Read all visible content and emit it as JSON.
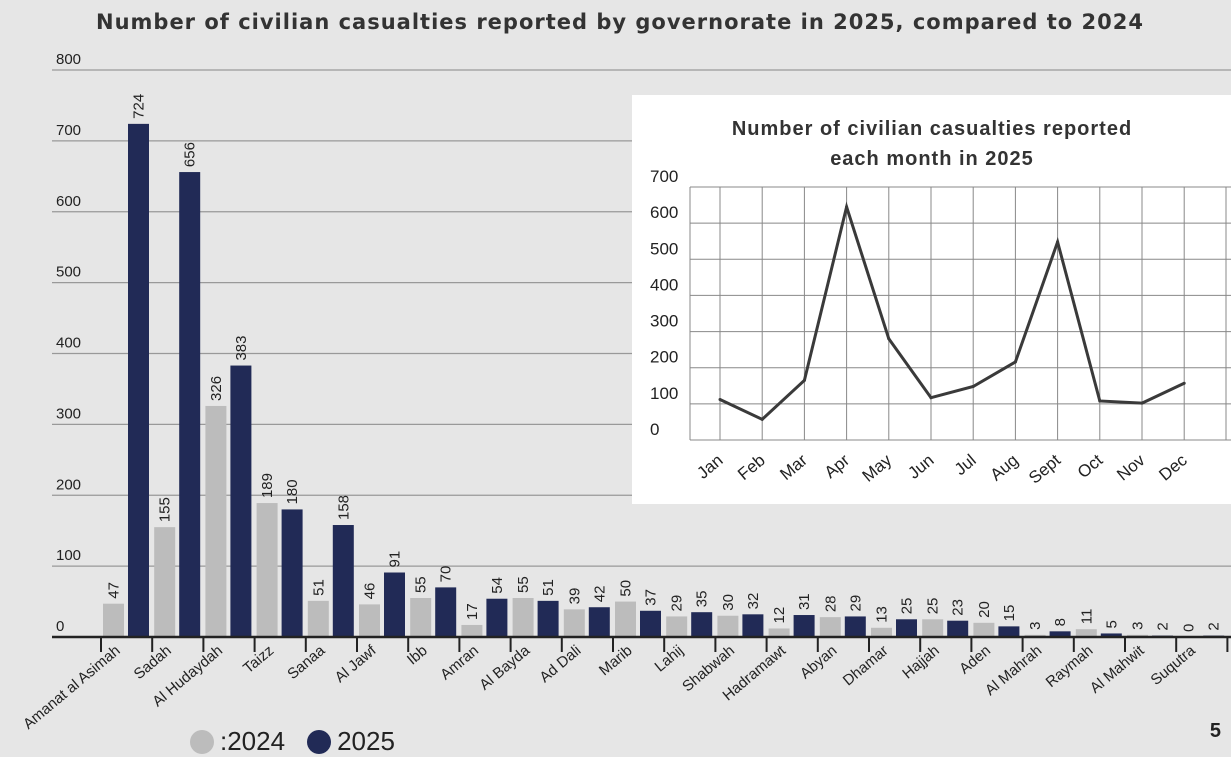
{
  "page": {
    "number": "5"
  },
  "colors": {
    "y2024": "#bcbcbc",
    "y2025": "#212a56",
    "line": "#3a3a3a",
    "grid": "#999999"
  },
  "chart_data": [
    {
      "type": "bar",
      "title": "Number of civilian casualties reported by governorate in 2025, compared to 2024",
      "xlabel": "",
      "ylabel": "",
      "ylim": [
        0,
        800
      ],
      "yticks": [
        0,
        100,
        200,
        300,
        400,
        500,
        600,
        700,
        800
      ],
      "grid": true,
      "legend": "bottom-left",
      "categories": [
        "Amanat al Asimah",
        "Sadah",
        "Al Hudaydah",
        "Taizz",
        "Sanaa",
        "Al Jawf",
        "Ibb",
        "Amran",
        "Al Bayda",
        "Ad Dali",
        "Marib",
        "Lahij",
        "Shabwah",
        "Hadramawt",
        "Abyan",
        "Dhamar",
        "Hajjah",
        "Aden",
        "Al Mahrah",
        "Raymah",
        "Al Mahwit",
        "Suqutra"
      ],
      "series": [
        {
          "name": ":2024",
          "values": [
            47,
            155,
            326,
            189,
            51,
            46,
            55,
            17,
            55,
            39,
            50,
            29,
            30,
            12,
            28,
            13,
            25,
            20,
            3,
            11,
            3,
            0
          ]
        },
        {
          "name": "2025",
          "values": [
            724,
            656,
            383,
            180,
            158,
            91,
            70,
            54,
            51,
            42,
            37,
            35,
            32,
            31,
            29,
            25,
            23,
            15,
            8,
            5,
            2,
            2
          ]
        }
      ]
    },
    {
      "type": "line",
      "title": "Number of civilian casualties reported each month in 2025",
      "title_lines": [
        "Number of civilian casualties reported",
        "each month in 2025"
      ],
      "xlabel": "",
      "ylabel": "",
      "ylim": [
        0,
        700
      ],
      "yticks": [
        0,
        100,
        200,
        300,
        400,
        500,
        600,
        700
      ],
      "grid": true,
      "categories": [
        "Jan",
        "Feb",
        "Mar",
        "Apr",
        "May",
        "Jun",
        "Jul",
        "Aug",
        "Sept",
        "Oct",
        "Nov",
        "Dec"
      ],
      "values": [
        112,
        57,
        165,
        645,
        280,
        117,
        148,
        216,
        548,
        108,
        102,
        157
      ]
    }
  ]
}
